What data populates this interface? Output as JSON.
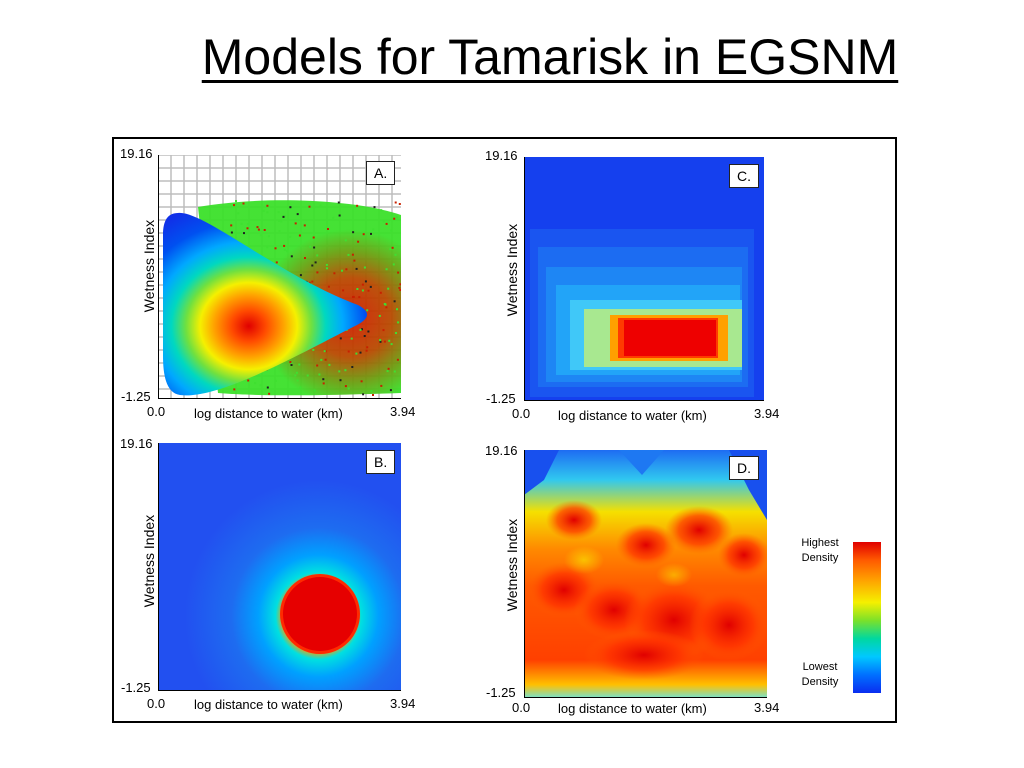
{
  "slide": {
    "title": "Models for Tamarisk in EGSNM"
  },
  "legend": {
    "high": "Highest Density",
    "low": "Lowest Density",
    "colors": [
      "#e00000",
      "#ff5a00",
      "#ffa000",
      "#f5f000",
      "#7be12a",
      "#00d8a0",
      "#00c8ff",
      "#0070ff",
      "#0a2df0"
    ]
  },
  "chart_data": [
    {
      "type": "heatmap",
      "panel": "A.",
      "xlabel": "log distance to water (km)",
      "ylabel": "Wetness Index",
      "xlim": [
        0.0,
        3.94
      ],
      "ylim": [
        -1.25,
        19.16
      ],
      "x_ticks": [
        "0.0",
        "3.94"
      ],
      "y_ticks": [
        "-1.25",
        "19.16"
      ],
      "grid": true,
      "overlay": "sample points (green / red / black) over a triangular density surface"
    },
    {
      "type": "heatmap",
      "panel": "B.",
      "xlabel": "log distance to water (km)",
      "ylabel": "Wetness Index",
      "xlim": [
        0.0,
        3.94
      ],
      "ylim": [
        -1.25,
        19.16
      ],
      "x_ticks": [
        "0.0",
        "3.94"
      ],
      "y_ticks": [
        "-1.25",
        "19.16"
      ],
      "grid": false
    },
    {
      "type": "heatmap",
      "panel": "C.",
      "xlabel": "log distance to water (km)",
      "ylabel": "Wetness Index",
      "xlim": [
        0.0,
        3.94
      ],
      "ylim": [
        -1.25,
        19.16
      ],
      "x_ticks": [
        "0.0",
        "3.94"
      ],
      "y_ticks": [
        "-1.25",
        "19.16"
      ],
      "grid": false
    },
    {
      "type": "heatmap",
      "panel": "D.",
      "xlabel": "log distance to water (km)",
      "ylabel": "Wetness Index",
      "xlim": [
        0.0,
        3.94
      ],
      "ylim": [
        -1.25,
        19.16
      ],
      "x_ticks": [
        "0.0",
        "3.94"
      ],
      "y_ticks": [
        "-1.25",
        "19.16"
      ],
      "grid": false
    }
  ]
}
